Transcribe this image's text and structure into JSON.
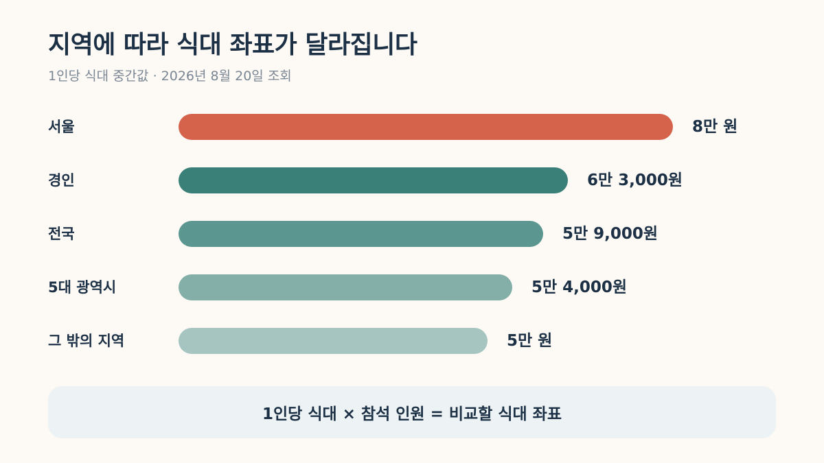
{
  "title": "지역에 따라 식대 좌표가 달라집니다",
  "subtitle": "1인당 식대 중간값 · 2026년 8월 20일 조회",
  "formula": "1인당 식대 × 참석 인원 = 비교할 식대 좌표",
  "chart_data": {
    "type": "bar",
    "orientation": "horizontal",
    "categories": [
      "서울",
      "경인",
      "전국",
      "5대 광역시",
      "그 밖의 지역"
    ],
    "values": [
      80000,
      63000,
      59000,
      54000,
      50000
    ],
    "value_labels": [
      "8만 원",
      "6만 3,000원",
      "5만 9,000원",
      "5만 4,000원",
      "5만 원"
    ],
    "colors": [
      "#d5634b",
      "#3a7f78",
      "#5b9690",
      "#84aea8",
      "#a6c4c0"
    ],
    "xlim": [
      0,
      80000
    ],
    "grid": false,
    "legend": "none"
  }
}
